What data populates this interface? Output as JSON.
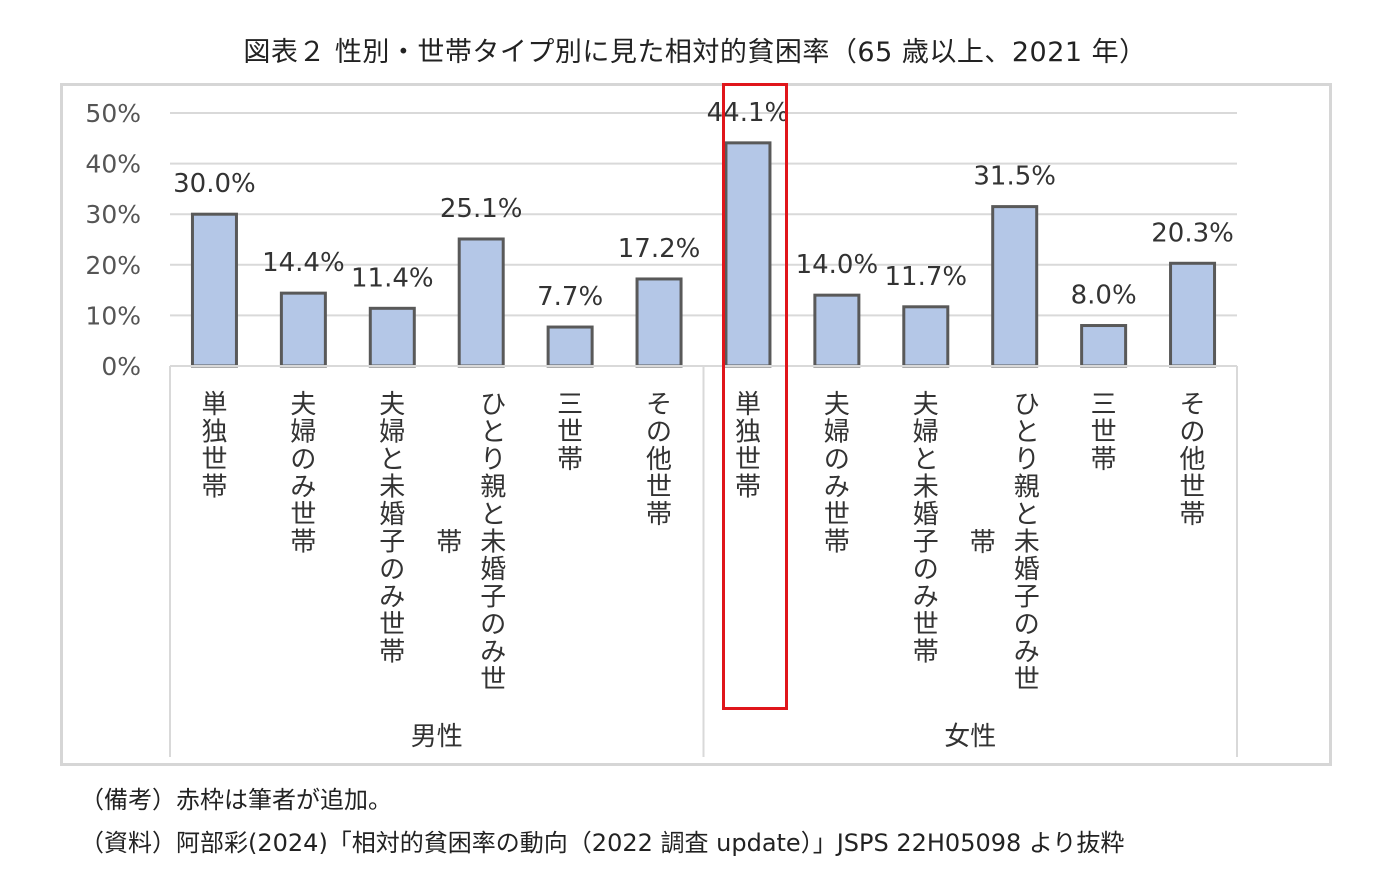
{
  "title": "図表２ 性別・世帯タイプ別に見た相対的貧困率（65 歳以上、2021 年）",
  "chart_data": {
    "type": "bar",
    "categories": [
      "単独世帯",
      "夫婦のみ世帯",
      "夫婦と未婚子のみ世帯",
      "ひとり親と未婚子のみ世帯",
      "三世帯",
      "その他世帯",
      "単独世帯",
      "夫婦のみ世帯",
      "夫婦と未婚子のみ世帯",
      "ひとり親と未婚子のみ世帯",
      "三世帯",
      "その他世帯"
    ],
    "groups": [
      {
        "label": "男性",
        "count": 6
      },
      {
        "label": "女性",
        "count": 6
      }
    ],
    "values": [
      30.0,
      14.4,
      11.4,
      25.1,
      7.7,
      17.2,
      44.1,
      14.0,
      11.7,
      31.5,
      8.0,
      20.3
    ],
    "data_labels": [
      "30.0%",
      "14.4%",
      "11.4%",
      "25.1%",
      "7.7%",
      "17.2%",
      "44.1%",
      "14.0%",
      "11.7%",
      "31.5%",
      "8.0%",
      "20.3%"
    ],
    "y_ticks": [
      "0%",
      "10%",
      "20%",
      "30%",
      "40%",
      "50%"
    ],
    "ylim": [
      0,
      50
    ],
    "grid": true,
    "highlight_index": 6,
    "colors": {
      "bar": "#b4c7e7",
      "bar_edge": "#595959",
      "grid": "#d9d9d9",
      "highlight": "#e0161b"
    }
  },
  "notes": {
    "remark": "（備考）赤枠は筆者が追加。",
    "source": "（資料）阿部彩(2024)「相対的貧困率の動向（2022 調査 update）」JSPS 22H05098 より抜粋"
  }
}
